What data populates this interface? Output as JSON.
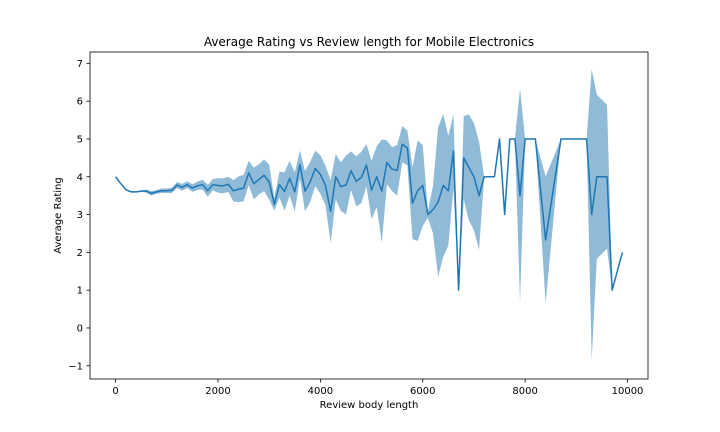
{
  "chart_data": {
    "type": "line",
    "title": "Average Rating vs Review length for Mobile Electronics",
    "xlabel": "Review body length",
    "ylabel": "Average Rating",
    "xlim": [
      -500,
      10400
    ],
    "ylim": [
      -1.35,
      7.3
    ],
    "xticks": [
      0,
      2000,
      4000,
      6000,
      8000,
      10000
    ],
    "yticks": [
      -1,
      0,
      1,
      2,
      3,
      4,
      5,
      6,
      7
    ],
    "grid": false,
    "colors": {
      "line": "#1f77b4",
      "band": "#1f77b4"
    },
    "series": [
      {
        "x": [
          0,
          100,
          200,
          300,
          400,
          500,
          600,
          700,
          800,
          900,
          1000,
          1100,
          1200,
          1300,
          1400,
          1500,
          1600,
          1700,
          1800,
          1900,
          2000,
          2100,
          2200,
          2300,
          2400,
          2500,
          2600,
          2700,
          2800,
          2900,
          3000,
          3100,
          3200,
          3300,
          3400,
          3500,
          3600,
          3700,
          3800,
          3900,
          4000,
          4100,
          4200,
          4300,
          4400,
          4500,
          4600,
          4700,
          4800,
          4900,
          5000,
          5100,
          5200,
          5300,
          5400,
          5500,
          5600,
          5700,
          5800,
          5900,
          6000,
          6100,
          6200,
          6300,
          6400,
          6500,
          6600,
          6700,
          6800,
          6900,
          7000,
          7100,
          7200,
          7400,
          7500,
          7600,
          7700,
          7800,
          7900,
          8000,
          8200,
          8400,
          8700,
          9000,
          9200,
          9300,
          9400,
          9600,
          9700,
          9900
        ],
        "y": [
          4.0,
          3.82,
          3.66,
          3.6,
          3.6,
          3.62,
          3.62,
          3.56,
          3.6,
          3.63,
          3.63,
          3.64,
          3.78,
          3.72,
          3.79,
          3.7,
          3.76,
          3.79,
          3.63,
          3.79,
          3.77,
          3.76,
          3.8,
          3.63,
          3.67,
          3.7,
          4.1,
          3.82,
          3.93,
          4.04,
          3.86,
          3.27,
          3.79,
          3.61,
          3.96,
          3.6,
          4.32,
          3.62,
          3.86,
          4.22,
          4.06,
          3.77,
          3.08,
          4.0,
          3.74,
          3.78,
          4.16,
          3.88,
          3.98,
          4.31,
          3.65,
          4.0,
          3.62,
          4.38,
          4.2,
          4.17,
          4.86,
          4.76,
          3.3,
          3.63,
          3.77,
          3.0,
          3.13,
          3.33,
          3.77,
          3.63,
          4.68,
          1.0,
          4.5,
          4.25,
          4.0,
          3.5,
          4.0,
          4.0,
          5.0,
          3.0,
          5.0,
          5.0,
          3.5,
          5.0,
          5.0,
          2.33,
          5.0,
          5.0,
          5.0,
          3.0,
          4.0,
          4.0,
          1.0,
          2.0
        ],
        "lower": [
          4.0,
          3.82,
          3.64,
          3.58,
          3.58,
          3.6,
          3.58,
          3.5,
          3.55,
          3.57,
          3.57,
          3.57,
          3.7,
          3.63,
          3.7,
          3.6,
          3.65,
          3.66,
          3.47,
          3.64,
          3.58,
          3.56,
          3.6,
          3.35,
          3.33,
          3.35,
          3.78,
          3.4,
          3.53,
          3.62,
          3.4,
          3.1,
          3.45,
          3.1,
          3.5,
          3.08,
          3.95,
          3.08,
          3.33,
          3.75,
          3.55,
          3.25,
          2.25,
          3.4,
          3.1,
          3.0,
          3.65,
          3.22,
          3.3,
          3.75,
          2.88,
          3.2,
          2.25,
          3.8,
          3.62,
          3.5,
          4.38,
          4.3,
          2.35,
          2.3,
          2.7,
          2.92,
          2.5,
          1.35,
          1.88,
          2.18,
          3.7,
          1.0,
          3.4,
          2.85,
          2.58,
          2.07,
          4.0,
          4.0,
          5.0,
          3.0,
          5.0,
          5.0,
          0.67,
          5.0,
          5.0,
          0.65,
          5.0,
          5.0,
          5.0,
          -0.85,
          1.83,
          2.1,
          1.0,
          2.0
        ],
        "upper": [
          4.0,
          3.82,
          3.68,
          3.62,
          3.62,
          3.64,
          3.66,
          3.62,
          3.65,
          3.69,
          3.69,
          3.71,
          3.86,
          3.81,
          3.88,
          3.8,
          3.87,
          3.92,
          3.79,
          3.94,
          3.96,
          3.96,
          4.0,
          3.91,
          4.01,
          4.05,
          4.42,
          4.24,
          4.33,
          4.46,
          4.32,
          3.44,
          4.13,
          4.12,
          4.42,
          4.12,
          4.69,
          4.16,
          4.39,
          4.69,
          4.57,
          4.29,
          3.91,
          4.6,
          4.38,
          4.56,
          4.67,
          4.54,
          4.66,
          4.87,
          4.42,
          4.8,
          4.99,
          4.96,
          4.78,
          4.84,
          5.34,
          5.22,
          4.25,
          4.96,
          4.84,
          3.08,
          3.76,
          5.31,
          5.66,
          5.08,
          5.66,
          1.0,
          5.6,
          5.65,
          5.42,
          4.93,
          4.0,
          4.0,
          5.0,
          3.0,
          5.0,
          5.0,
          6.33,
          5.0,
          5.0,
          4.01,
          5.0,
          5.0,
          5.0,
          6.85,
          6.17,
          5.9,
          1.0,
          2.0
        ]
      }
    ]
  }
}
